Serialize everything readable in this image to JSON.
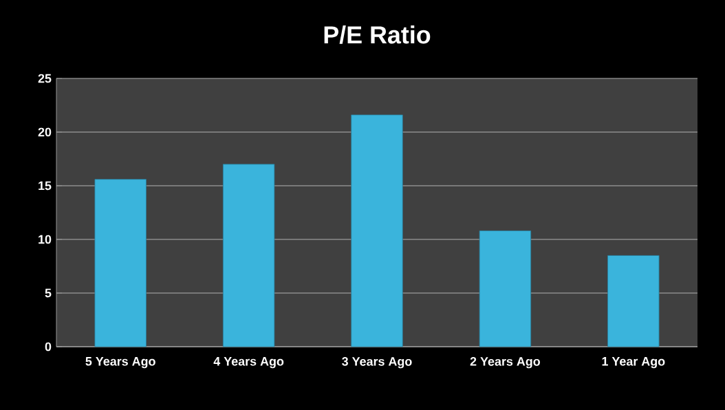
{
  "chart_data": {
    "type": "bar",
    "title": "P/E Ratio",
    "categories": [
      "5 Years Ago",
      "4 Years Ago",
      "3 Years Ago",
      "2 Years Ago",
      "1 Year Ago"
    ],
    "values": [
      15.6,
      17.0,
      21.6,
      10.8,
      8.5
    ],
    "color": "#3ab4dc",
    "ylim": [
      0,
      25
    ],
    "yticks": [
      0,
      5,
      10,
      15,
      20,
      25
    ],
    "grid": "y"
  }
}
